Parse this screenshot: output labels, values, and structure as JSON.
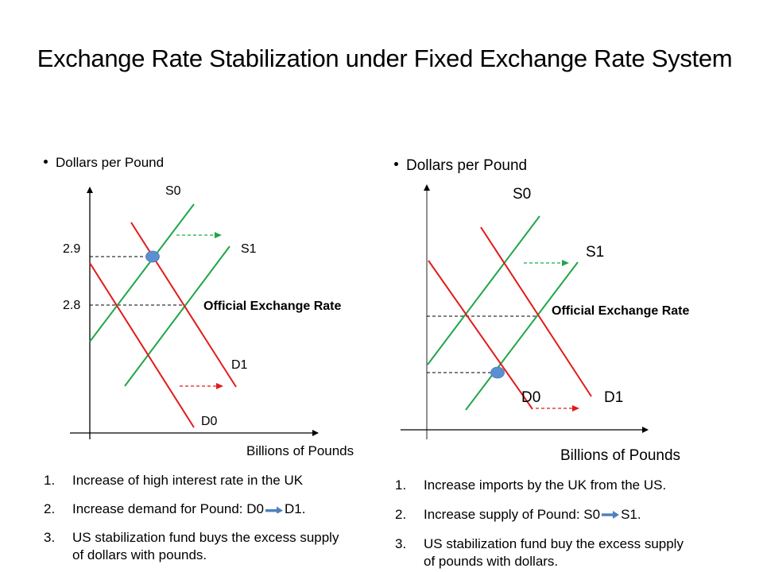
{
  "slide": {
    "title": "Exchange Rate Stabilization under Fixed Exchange Rate System"
  },
  "colors": {
    "supply": "#1fa64a",
    "demand": "#e21a1a",
    "equilibrium_dot": "#5b8fd0",
    "inline_arrow": "#4f81bd"
  },
  "left_panel": {
    "y_axis_label": "Dollars per Pound",
    "x_axis_label": "Billions of Pounds",
    "tick_high": "2.9",
    "tick_low": "2.8",
    "label_s0": "S0",
    "label_s1": "S1",
    "label_d0": "D0",
    "label_d1": "D1",
    "official_rate_label": "Official Exchange Rate",
    "steps": [
      {
        "num": "1.",
        "text": "Increase of high interest rate in the UK"
      },
      {
        "num": "2.",
        "text_before": "Increase demand for Pound: D0",
        "text_after": "D1."
      },
      {
        "num": "3.",
        "text": "US stabilization fund buys the excess supply",
        "text_line2": "of dollars with pounds."
      }
    ]
  },
  "right_panel": {
    "y_axis_label": "Dollars per Pound",
    "x_axis_label": "Billions of Pounds",
    "label_s0": "S0",
    "label_s1": "S1",
    "label_d0": "D0",
    "label_d1": "D1",
    "official_rate_label": "Official Exchange Rate",
    "steps": [
      {
        "num": "1.",
        "text": "Increase imports by the UK from the US."
      },
      {
        "num": "2.",
        "text_before": "Increase supply of Pound: S0",
        "text_after": "S1."
      },
      {
        "num": "3.",
        "text": "US stabilization fund buy the excess supply",
        "text_line2": "of pounds with dollars."
      }
    ]
  }
}
